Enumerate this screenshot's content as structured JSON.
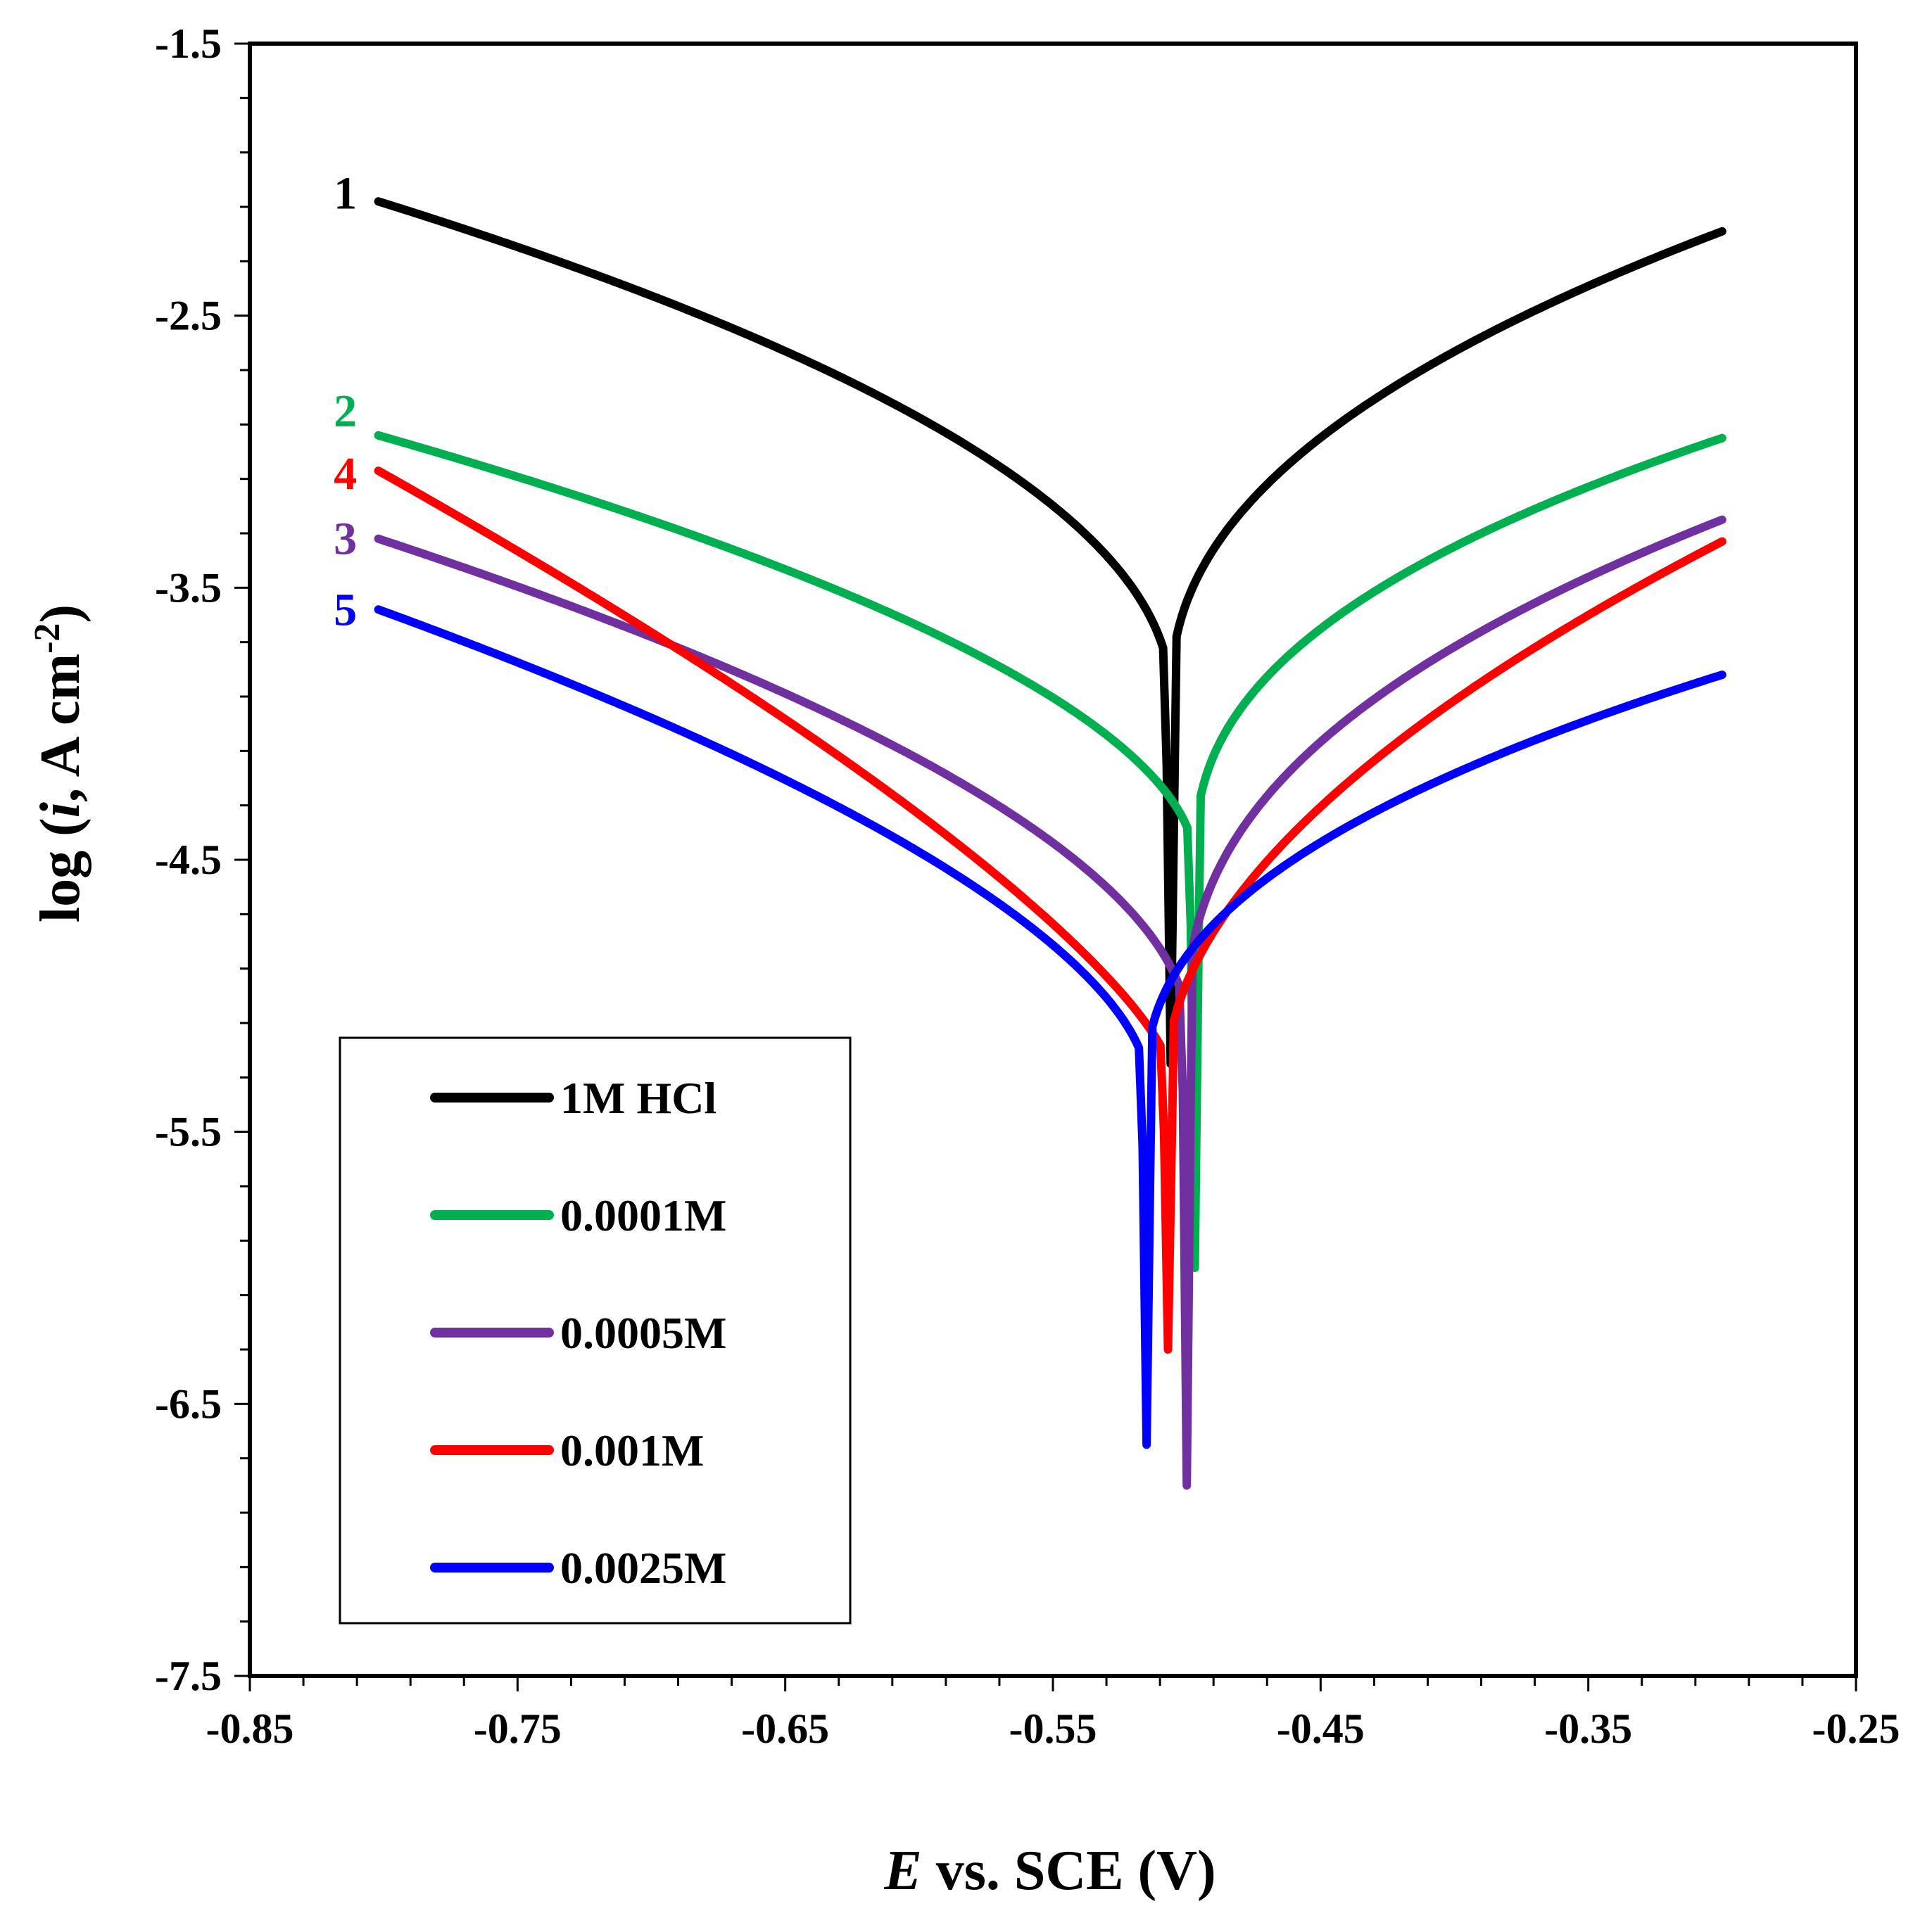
{
  "chart_data": {
    "type": "line",
    "title": "",
    "xlabel_italic": "E",
    "xlabel_rest": " vs. SCE (V)",
    "ylabel_prefix": "log (",
    "ylabel_italic": "i",
    "ylabel_mid": ", A cm",
    "ylabel_sup": "-2",
    "ylabel_suffix": ")",
    "xlim": [
      -0.85,
      -0.25
    ],
    "ylim": [
      -7.5,
      -1.5
    ],
    "xticks": [
      "-0.85",
      "-0.75",
      "-0.65",
      "-0.55",
      "-0.45",
      "-0.35",
      "-0.25"
    ],
    "yticks": [
      "-1.5",
      "-2.5",
      "-3.5",
      "-4.5",
      "-5.5",
      "-6.5",
      "-7.5"
    ],
    "legend_position": "bottom-left",
    "series": [
      {
        "name": "1M HCl",
        "label": "1",
        "color": "#000000",
        "x_start": -0.802,
        "x_end": -0.3,
        "ecorr": -0.506,
        "imin": -5.25,
        "y_start": -2.08,
        "y_end": -2.19,
        "y_near": -3.9,
        "kc": 0.5,
        "ka": 0.45,
        "label_x": -0.81,
        "label_y": -2.05
      },
      {
        "name": "0.0001M",
        "label": "2",
        "color": "#00b050",
        "x_start": -0.802,
        "x_end": -0.3,
        "ecorr": -0.497,
        "imin": -6.0,
        "y_start": -2.94,
        "y_end": -2.95,
        "y_near": -4.5,
        "kc": 0.55,
        "ka": 0.42,
        "label_x": -0.81,
        "label_y": -2.85
      },
      {
        "name": "0.0005M",
        "label": "3",
        "color": "#7030a0",
        "x_start": -0.802,
        "x_end": -0.3,
        "ecorr": -0.5,
        "imin": -6.8,
        "y_start": -3.32,
        "y_end": -3.25,
        "y_near": -5.1,
        "kc": 0.55,
        "ka": 0.42,
        "label_x": -0.81,
        "label_y": -3.32
      },
      {
        "name": "0.001M",
        "label": "4",
        "color": "#ff0000",
        "x_start": -0.802,
        "x_end": -0.3,
        "ecorr": -0.507,
        "imin": -6.3,
        "y_start": -3.07,
        "y_end": -3.33,
        "y_near": -5.25,
        "kc": 0.75,
        "ka": 0.55,
        "label_x": -0.81,
        "label_y": -3.08
      },
      {
        "name": "0.0025M",
        "label": "5",
        "color": "#0000ff",
        "x_start": -0.802,
        "x_end": -0.3,
        "ecorr": -0.515,
        "imin": -6.65,
        "y_start": -3.58,
        "y_end": -3.82,
        "y_near": -5.3,
        "kc": 0.6,
        "ka": 0.45,
        "label_x": -0.81,
        "label_y": -3.58
      }
    ]
  }
}
